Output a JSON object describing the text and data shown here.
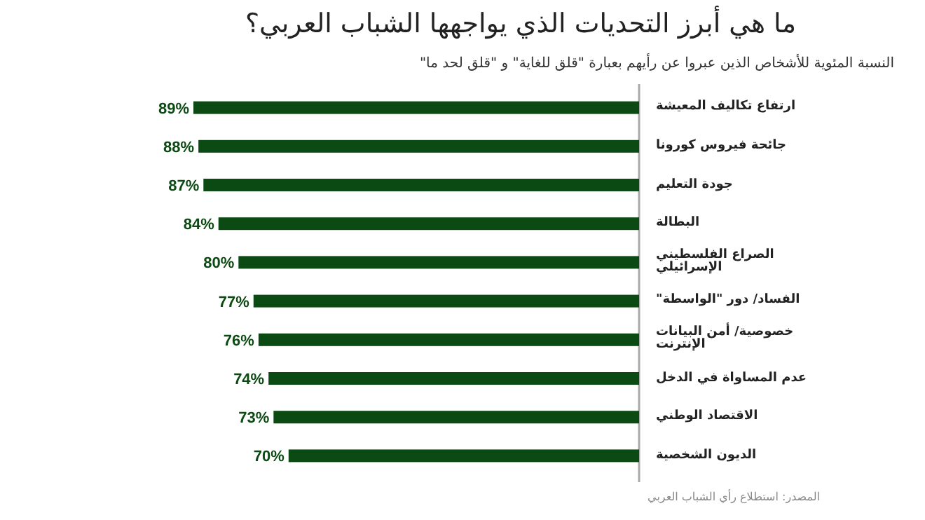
{
  "chart_data": {
    "type": "bar",
    "orientation": "horizontal",
    "title": "ما هي أبرز التحديات الذي يواجهها الشباب العربي؟",
    "subtitle": "النسبة المئوية للأشخاص الذين عبروا عن رأيهم بعبارة \"قلق للغاية\" و \"قلق لحد ما\"",
    "categories": [
      "ارتفاع تكاليف المعيشة",
      "جائحة فيروس كورونا",
      "جودة التعليم",
      "البطالة",
      "الصراع الفلسطيني الإسرائيلي",
      "الفساد/ دور \"الواسطة\"",
      "خصوصية/ أمن البيانات الإنترنت",
      "عدم المساواة في الدخل",
      "الاقتصاد الوطني",
      "الديون الشخصية"
    ],
    "values": [
      89,
      88,
      87,
      84,
      80,
      77,
      76,
      74,
      73,
      70
    ],
    "value_labels": [
      "89%",
      "88%",
      "87%",
      "84%",
      "80%",
      "77%",
      "76%",
      "74%",
      "73%",
      "70%"
    ],
    "color": "#0b4a12",
    "annotations": [
      "المصدر: استطلاع رأي الشباب العربي"
    ]
  }
}
